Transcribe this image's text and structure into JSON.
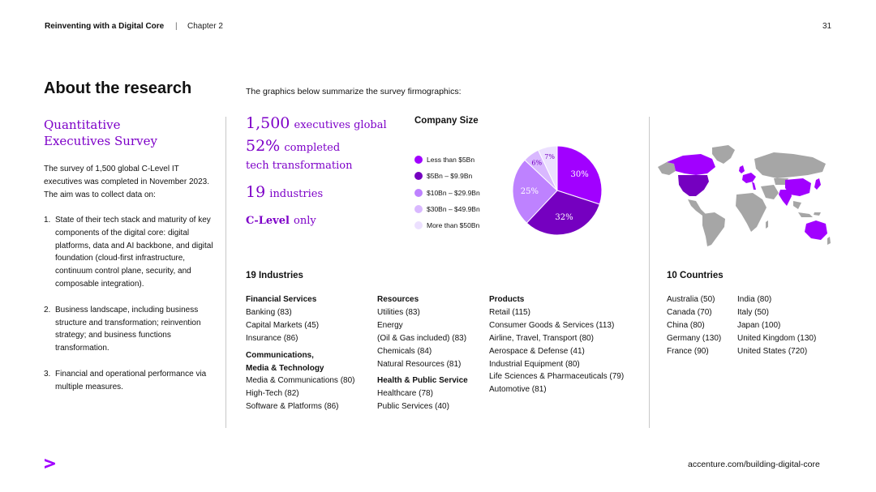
{
  "header": {
    "title": "Reinventing with a Digital Core",
    "separator": "|",
    "chapter": "Chapter 2",
    "page": "31"
  },
  "page_title": "About the research",
  "intro": "The graphics below summarize the survey firmographics:",
  "survey": {
    "heading_line1": "Quantitative",
    "heading_line2": "Executives Survey",
    "description": "The survey of 1,500 global C-Level IT executives was completed in November 2023. The aim was to collect data on:",
    "items": [
      {
        "num": "1.",
        "text": "State of their tech stack and maturity of key components of the digital core: digital platforms, data and AI backbone, and digital foundation (cloud-first infrastructure, continuum control plane, security, and composable integration)."
      },
      {
        "num": "2.",
        "text": "Business landscape, including business structure and transformation; reinvention strategy; and business functions transformation."
      },
      {
        "num": "3.",
        "text": "Financial and operational performance via multiple measures."
      }
    ]
  },
  "stats": {
    "exec_big": "1,500",
    "exec_small": "executives global",
    "pct_big": "52%",
    "pct_small1": "completed",
    "pct_small2": "tech transformation",
    "ind_big": "19",
    "ind_small": "industries",
    "clevel_big": "C-Level",
    "clevel_small": "only"
  },
  "chart_data": {
    "type": "pie",
    "title": "Company Size",
    "categories": [
      "Less than $5Bn",
      "$5Bn – $9.9Bn",
      "$10Bn – $29.9Bn",
      "$30Bn – $49.9Bn",
      "More than $50Bn"
    ],
    "values": [
      30,
      32,
      25,
      6,
      7
    ],
    "labels": [
      "30%",
      "32%",
      "25%",
      "6%",
      "7%"
    ],
    "colors": [
      "#a100ff",
      "#7500c0",
      "#be82ff",
      "#d9b8ff",
      "#ece0ff"
    ],
    "label_colors": [
      "#ffffff",
      "#ffffff",
      "#ffffff",
      "#7500c0",
      "#7500c0"
    ],
    "legend_position": "left"
  },
  "industries": {
    "title": "19 Industries",
    "col_a": [
      {
        "text": "Financial Services",
        "bold": true
      },
      {
        "text": "Banking (83)"
      },
      {
        "text": "Capital Markets (45)"
      },
      {
        "text": "Insurance (86)"
      },
      {
        "text": "Communications,",
        "bold": true,
        "gap": true
      },
      {
        "text": "Media & Technology",
        "bold": true
      },
      {
        "text": "Media & Communications (80)"
      },
      {
        "text": "High-Tech (82)"
      },
      {
        "text": "Software & Platforms (86)"
      }
    ],
    "col_b": [
      {
        "text": "Resources",
        "bold": true
      },
      {
        "text": "Utilities (83)"
      },
      {
        "text": "Energy"
      },
      {
        "text": "(Oil & Gas included) (83)"
      },
      {
        "text": "Chemicals (84)"
      },
      {
        "text": "Natural Resources (81)"
      },
      {
        "text": "Health & Public Service",
        "bold": true,
        "gap": true
      },
      {
        "text": "Healthcare (78)"
      },
      {
        "text": "Public Services (40)"
      }
    ],
    "col_c": [
      {
        "text": "Products",
        "bold": true
      },
      {
        "text": "Retail (115)"
      },
      {
        "text": "Consumer Goods & Services (113)"
      },
      {
        "text": "Airline, Travel, Transport  (80)"
      },
      {
        "text": "Aerospace & Defense (41)"
      },
      {
        "text": "Industrial Equipment (80)"
      },
      {
        "text": "Life Sciences & Pharmaceuticals  (79)"
      },
      {
        "text": "Automotive (81)"
      }
    ]
  },
  "countries": {
    "title": "10 Countries",
    "col_a": [
      "Australia (50)",
      "Canada (70)",
      "China (80)",
      "Germany (130)",
      "France (90)"
    ],
    "col_b": [
      "India (80)",
      "Italy (50)",
      "Japan (100)",
      "United Kingdom (130)",
      "United States (720)"
    ]
  },
  "colors": {
    "accent": "#a100ff",
    "accent_dark": "#7500c0",
    "map_gray": "#a6a6a6"
  },
  "footer": {
    "url": "accenture.com/building-digital-core",
    "logo_icon": "accenture-chevron-logo"
  }
}
